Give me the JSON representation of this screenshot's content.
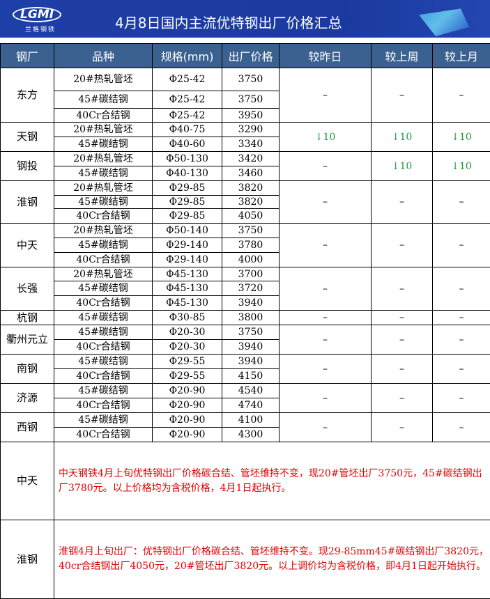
{
  "header": {
    "title": "4月8日国内主流优特钢出厂价格汇总",
    "logo_text": "LGMI",
    "logo_sub": "兰格钢铁"
  },
  "columns": [
    "钢厂",
    "品种",
    "规格(mm)",
    "出厂价格",
    "较昨日",
    "较上周",
    "较上月"
  ],
  "groups": [
    {
      "mill": "东方",
      "rows": [
        [
          "20#热轧管坯",
          "Φ25-42",
          "3750"
        ],
        [
          "45#碳结钢",
          "Φ25-42",
          "3750"
        ],
        [
          "40Cr合结钢",
          "Φ25-42",
          "3950"
        ]
      ],
      "changes": [
        "–",
        "–",
        "–"
      ]
    },
    {
      "mill": "天钢",
      "rows": [
        [
          "20#热轧管坯",
          "Φ40-75",
          "3290"
        ],
        [
          "45#碳结钢",
          "Φ40-60",
          "3340"
        ]
      ],
      "changes": [
        "↓10",
        "↓10",
        "↓10"
      ]
    },
    {
      "mill": "钢投",
      "rows": [
        [
          "20#热轧管坯",
          "Φ50-130",
          "3420"
        ],
        [
          "45#碳结钢",
          "Φ40-130",
          "3460"
        ]
      ],
      "changes": [
        "–",
        "↓10",
        "↓10"
      ]
    },
    {
      "mill": "淮钢",
      "rows": [
        [
          "20#热轧管坯",
          "Φ29-85",
          "3820"
        ],
        [
          "45#碳结钢",
          "Φ29-85",
          "3820"
        ],
        [
          "40Cr合结钢",
          "Φ29-85",
          "4050"
        ]
      ],
      "changes": [
        "–",
        "–",
        "–"
      ]
    },
    {
      "mill": "中天",
      "rows": [
        [
          "20#热轧管坯",
          "Φ50-140",
          "3750"
        ],
        [
          "45#碳结钢",
          "Φ29-140",
          "3780"
        ],
        [
          "40Cr合结钢",
          "Φ29-140",
          "4000"
        ]
      ],
      "changes": [
        "–",
        "–",
        "–"
      ]
    },
    {
      "mill": "长强",
      "rows": [
        [
          "20#热轧管坯",
          "Φ45-130",
          "3700"
        ],
        [
          "45#碳结钢",
          "Φ45-130",
          "3720"
        ],
        [
          "40Cr合结钢",
          "Φ45-130",
          "3940"
        ]
      ],
      "changes": [
        "–",
        "–",
        "–"
      ]
    },
    {
      "mill": "杭钢",
      "rows": [
        [
          "45#碳结钢",
          "Φ30-85",
          "3800"
        ]
      ],
      "changes": [
        "–",
        "–",
        "–"
      ]
    },
    {
      "mill": "衢州元立",
      "rows": [
        [
          "45#碳结钢",
          "Φ20-30",
          "3750"
        ],
        [
          "40Cr合结钢",
          "Φ20-30",
          "3940"
        ]
      ],
      "changes": [
        "–",
        "–",
        "–"
      ]
    },
    {
      "mill": "南钢",
      "rows": [
        [
          "45#碳结钢",
          "Φ29-55",
          "3940"
        ],
        [
          "40Cr合结钢",
          "Φ29-55",
          "4150"
        ]
      ],
      "changes": [
        "–",
        "–",
        "–"
      ]
    },
    {
      "mill": "济源",
      "rows": [
        [
          "45#碳结钢",
          "Φ20-90",
          "4540"
        ],
        [
          "40Cr合结钢",
          "Φ20-90",
          "4740"
        ]
      ],
      "changes": [
        "–",
        "–",
        "–"
      ]
    },
    {
      "mill": "西钢",
      "rows": [
        [
          "45#碳结钢",
          "Φ20-90",
          "4100"
        ],
        [
          "40Cr合结钢",
          "Φ20-90",
          "4300"
        ]
      ],
      "changes": [
        "–",
        "–",
        "–"
      ]
    }
  ],
  "notes": [
    {
      "mill": "中天",
      "text": "中天钢铁4月上旬优特钢出厂价格碳合结、管坯维持不变，现20#管坯出厂3750元，45#碳结钢出厂3780元。以上价格均为含税价格，4月1日起执行。"
    },
    {
      "mill": "淮钢",
      "text": "淮钢4月上旬出厂：优特钢出厂价格碳合结、管坯维持不变。现29-85mm45#碳结钢出厂3820元，40cr合结钢出厂4050元，20#管坯出厂3820元。以上调价均为含税价格，即4月1日起开始执行。"
    }
  ],
  "colors": {
    "banner": "#1f3fa8",
    "header_row": "#3a6190",
    "down": "#1a9b3b",
    "note": "#e00000"
  }
}
